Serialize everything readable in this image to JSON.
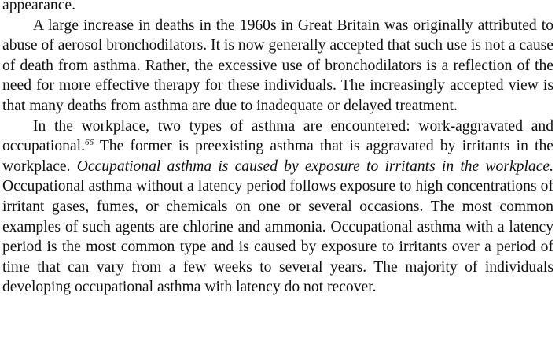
{
  "paragraphs": [
    {
      "text": "appearance."
    },
    {
      "text": "A large increase in deaths in the 1960s in Great Britain was originally attributed to abuse of aerosol bronchodilators. It is now generally accepted that such use is not a cause of death from asthma. Rather, the excessive use of bronchodilators is a reflection of the need for more effective therapy for these individuals. The increasingly accepted view is that many deaths from asthma are due to inadequate or delayed treatment."
    },
    {
      "text_a": "In the workplace, two types of asthma are encountered: work-aggravated and occupational.",
      "footnote": "66",
      "text_b": " The former is preexisting asthma that is aggravated by irritants in the workplace. ",
      "italic": "Occupational asthma is caused by exposure to irritants in the workplace.",
      "text_c": " Occupational asthma without a latency period follows exposure to high concentrations of irritant gases, fumes, or chemicals on one or several occasions. The most common examples of such agents are chlorine and ammonia. Occupational asthma with a latency period is the most common type and is caused by exposure to irritants over a period of time that can vary from a few weeks to several years. The majority of individuals developing occupational asthma with latency do not recover."
    }
  ]
}
